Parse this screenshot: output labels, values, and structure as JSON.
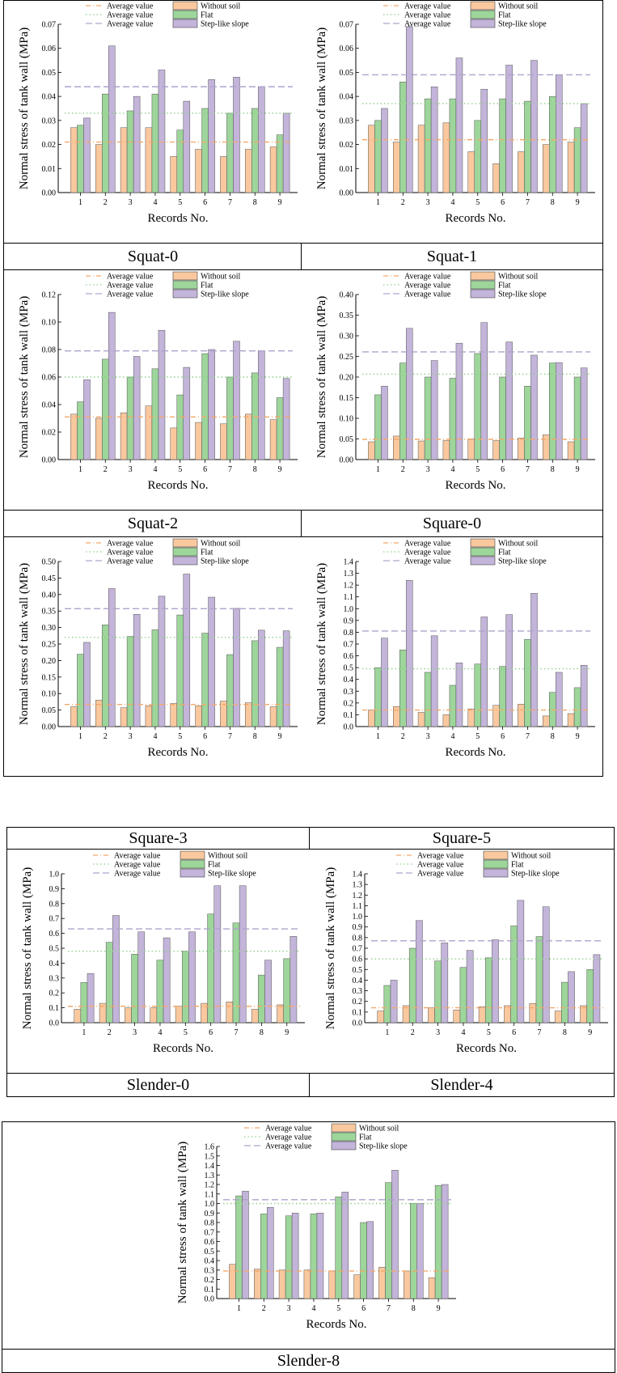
{
  "legend": {
    "average_label": "Average value",
    "without_soil": "Without soil",
    "flat": "Flat",
    "step": "Step-like slope"
  },
  "colors": {
    "without_soil": "#F9C89E",
    "flat": "#9DD59A",
    "step": "#C3B4DA",
    "avg_without": "#F4A86A",
    "avg_flat": "#8ED08A",
    "avg_step": "#AFA3CC"
  },
  "captions": [
    "Squat-0",
    "Squat-1",
    "Squat-2",
    "Square-0",
    "Square-3",
    "Square-5",
    "Slender-0",
    "Slender-4",
    "Slender-8"
  ],
  "chart_data": [
    {
      "type": "bar",
      "name": "Squat-0",
      "xlabel": "Records No.",
      "ylabel": "Normal stress of tank wall (MPa)",
      "categories": [
        "1",
        "2",
        "3",
        "4",
        "5",
        "6",
        "7",
        "8",
        "9"
      ],
      "ylim": [
        0,
        0.07
      ],
      "yticks": [
        "0.00",
        "0.01",
        "0.02",
        "0.03",
        "0.04",
        "0.05",
        "0.06",
        "0.07"
      ],
      "series": [
        {
          "name": "Without soil",
          "values": [
            0.027,
            0.02,
            0.027,
            0.027,
            0.015,
            0.018,
            0.015,
            0.018,
            0.019
          ]
        },
        {
          "name": "Flat",
          "values": [
            0.028,
            0.041,
            0.034,
            0.041,
            0.026,
            0.035,
            0.033,
            0.035,
            0.024
          ]
        },
        {
          "name": "Step-like slope",
          "values": [
            0.031,
            0.061,
            0.04,
            0.051,
            0.038,
            0.047,
            0.048,
            0.044,
            0.033
          ]
        }
      ],
      "averages": [
        0.021,
        0.033,
        0.044
      ]
    },
    {
      "type": "bar",
      "name": "Squat-1",
      "xlabel": "Records No.",
      "ylabel": "Normal stress of tank wall (MPa)",
      "categories": [
        "1",
        "2",
        "3",
        "4",
        "5",
        "6",
        "7",
        "8",
        "9"
      ],
      "ylim": [
        0,
        0.07
      ],
      "yticks": [
        "0.00",
        "0.01",
        "0.02",
        "0.03",
        "0.04",
        "0.05",
        "0.06",
        "0.07"
      ],
      "series": [
        {
          "name": "Without soil",
          "values": [
            0.028,
            0.021,
            0.028,
            0.029,
            0.017,
            0.012,
            0.017,
            0.02,
            0.021
          ]
        },
        {
          "name": "Flat",
          "values": [
            0.03,
            0.046,
            0.039,
            0.039,
            0.03,
            0.039,
            0.038,
            0.04,
            0.027
          ]
        },
        {
          "name": "Step-like slope",
          "values": [
            0.035,
            0.069,
            0.044,
            0.056,
            0.043,
            0.053,
            0.055,
            0.049,
            0.037
          ]
        }
      ],
      "averages": [
        0.022,
        0.037,
        0.049
      ]
    },
    {
      "type": "bar",
      "name": "Squat-2",
      "xlabel": "Records No.",
      "ylabel": "Normal stress of tank wall (MPa)",
      "categories": [
        "1",
        "2",
        "3",
        "4",
        "5",
        "6",
        "7",
        "8",
        "9"
      ],
      "ylim": [
        0,
        0.12
      ],
      "yticks": [
        "0.00",
        "0.02",
        "0.04",
        "0.06",
        "0.08",
        "0.10",
        "0.12"
      ],
      "series": [
        {
          "name": "Without soil",
          "values": [
            0.033,
            0.03,
            0.034,
            0.039,
            0.023,
            0.027,
            0.026,
            0.033,
            0.029
          ]
        },
        {
          "name": "Flat",
          "values": [
            0.042,
            0.073,
            0.06,
            0.066,
            0.047,
            0.077,
            0.06,
            0.063,
            0.045
          ]
        },
        {
          "name": "Step-like slope",
          "values": [
            0.058,
            0.107,
            0.075,
            0.094,
            0.067,
            0.08,
            0.086,
            0.079,
            0.059
          ]
        }
      ],
      "averages": [
        0.031,
        0.06,
        0.079
      ]
    },
    {
      "type": "bar",
      "name": "Square-0",
      "xlabel": "Records No.",
      "ylabel": "Normal stress of tank wall (MPa)",
      "categories": [
        "1",
        "2",
        "3",
        "4",
        "5",
        "6",
        "7",
        "8",
        "9"
      ],
      "ylim": [
        0,
        0.4
      ],
      "yticks": [
        "0.00",
        "0.05",
        "0.10",
        "0.15",
        "0.20",
        "0.25",
        "0.30",
        "0.35",
        "0.40"
      ],
      "series": [
        {
          "name": "Without soil",
          "values": [
            0.043,
            0.057,
            0.045,
            0.046,
            0.05,
            0.046,
            0.052,
            0.06,
            0.043
          ]
        },
        {
          "name": "Flat",
          "values": [
            0.157,
            0.234,
            0.2,
            0.197,
            0.257,
            0.2,
            0.178,
            0.234,
            0.2
          ]
        },
        {
          "name": "Step-like slope",
          "values": [
            0.178,
            0.318,
            0.24,
            0.282,
            0.332,
            0.285,
            0.253,
            0.235,
            0.222
          ]
        }
      ],
      "averages": [
        0.049,
        0.207,
        0.261
      ]
    },
    {
      "type": "bar",
      "name": "Square-3",
      "xlabel": "Records No.",
      "ylabel": "Normal stress of tank wall (MPa)",
      "categories": [
        "1",
        "2",
        "3",
        "4",
        "5",
        "6",
        "7",
        "8",
        "9"
      ],
      "ylim": [
        0,
        0.5
      ],
      "yticks": [
        "0.00",
        "0.05",
        "0.10",
        "0.15",
        "0.20",
        "0.25",
        "0.30",
        "0.35",
        "0.40",
        "0.45",
        "0.50"
      ],
      "series": [
        {
          "name": "Without soil",
          "values": [
            0.06,
            0.08,
            0.057,
            0.063,
            0.07,
            0.063,
            0.077,
            0.072,
            0.06
          ]
        },
        {
          "name": "Flat",
          "values": [
            0.219,
            0.308,
            0.273,
            0.293,
            0.338,
            0.283,
            0.218,
            0.26,
            0.24
          ]
        },
        {
          "name": "Step-like slope",
          "values": [
            0.255,
            0.418,
            0.34,
            0.395,
            0.462,
            0.392,
            0.358,
            0.292,
            0.29
          ]
        }
      ],
      "averages": [
        0.067,
        0.27,
        0.357
      ]
    },
    {
      "type": "bar",
      "name": "Square-5",
      "xlabel": "Records No.",
      "ylabel": "Normal stress of tank wall (MPa)",
      "categories": [
        "1",
        "2",
        "3",
        "4",
        "5",
        "6",
        "7",
        "8",
        "9"
      ],
      "ylim": [
        0,
        1.4
      ],
      "yticks": [
        "0.0",
        "0.1",
        "0.2",
        "0.3",
        "0.4",
        "0.5",
        "0.6",
        "0.7",
        "0.8",
        "0.9",
        "1.0",
        "1.1",
        "1.2",
        "1.3",
        "1.4"
      ],
      "series": [
        {
          "name": "Without soil",
          "values": [
            0.14,
            0.17,
            0.12,
            0.1,
            0.15,
            0.18,
            0.19,
            0.09,
            0.11
          ]
        },
        {
          "name": "Flat",
          "values": [
            0.5,
            0.65,
            0.46,
            0.35,
            0.53,
            0.51,
            0.74,
            0.29,
            0.33
          ]
        },
        {
          "name": "Step-like slope",
          "values": [
            0.75,
            1.24,
            0.77,
            0.54,
            0.93,
            0.95,
            1.13,
            0.46,
            0.52
          ]
        }
      ],
      "averages": [
        0.14,
        0.49,
        0.81
      ]
    },
    {
      "type": "bar",
      "name": "Slender-0",
      "xlabel": "Records No.",
      "ylabel": "Normal stress of tank wall (MPa)",
      "categories": [
        "1",
        "2",
        "3",
        "4",
        "5",
        "6",
        "7",
        "8",
        "9"
      ],
      "ylim": [
        0,
        1.0
      ],
      "yticks": [
        "0.0",
        "0.1",
        "0.2",
        "0.3",
        "0.4",
        "0.5",
        "0.6",
        "0.7",
        "0.8",
        "0.9",
        "1.0"
      ],
      "series": [
        {
          "name": "Without soil",
          "values": [
            0.09,
            0.13,
            0.1,
            0.1,
            0.11,
            0.13,
            0.14,
            0.09,
            0.12
          ]
        },
        {
          "name": "Flat",
          "values": [
            0.27,
            0.54,
            0.46,
            0.42,
            0.48,
            0.73,
            0.67,
            0.32,
            0.43
          ]
        },
        {
          "name": "Step-like slope",
          "values": [
            0.33,
            0.72,
            0.61,
            0.57,
            0.61,
            0.92,
            0.92,
            0.42,
            0.58
          ]
        }
      ],
      "averages": [
        0.11,
        0.48,
        0.63
      ]
    },
    {
      "type": "bar",
      "name": "Slender-4",
      "xlabel": "Records No.",
      "ylabel": "Normal stress of tank wall (MPa)",
      "categories": [
        "1",
        "2",
        "3",
        "4",
        "5",
        "6",
        "7",
        "8",
        "9"
      ],
      "ylim": [
        0,
        1.4
      ],
      "yticks": [
        "0.0",
        "0.1",
        "0.2",
        "0.3",
        "0.4",
        "0.5",
        "0.6",
        "0.7",
        "0.8",
        "0.9",
        "1.0",
        "1.1",
        "1.2",
        "1.3",
        "1.4"
      ],
      "series": [
        {
          "name": "Without soil",
          "values": [
            0.11,
            0.16,
            0.14,
            0.12,
            0.15,
            0.16,
            0.18,
            0.11,
            0.16
          ]
        },
        {
          "name": "Flat",
          "values": [
            0.35,
            0.7,
            0.58,
            0.52,
            0.61,
            0.91,
            0.81,
            0.38,
            0.5
          ]
        },
        {
          "name": "Step-like slope",
          "values": [
            0.4,
            0.96,
            0.75,
            0.68,
            0.78,
            1.15,
            1.09,
            0.48,
            0.64
          ]
        }
      ],
      "averages": [
        0.14,
        0.6,
        0.77
      ]
    },
    {
      "type": "bar",
      "name": "Slender-8",
      "xlabel": "Records No.",
      "ylabel": "Normal stress of tank wall (MPa)",
      "categories": [
        "1",
        "2",
        "3",
        "4",
        "5",
        "6",
        "7",
        "8",
        "9"
      ],
      "ylim": [
        0,
        1.6
      ],
      "yticks": [
        "0.0",
        "0.1",
        "0.2",
        "0.3",
        "0.4",
        "0.5",
        "0.6",
        "0.7",
        "0.8",
        "0.9",
        "1.0",
        "1.1",
        "1.2",
        "1.3",
        "1.4",
        "1.5",
        "1.6"
      ],
      "series": [
        {
          "name": "Without soil",
          "values": [
            0.36,
            0.31,
            0.3,
            0.3,
            0.29,
            0.25,
            0.33,
            0.29,
            0.22
          ]
        },
        {
          "name": "Flat",
          "values": [
            1.08,
            0.89,
            0.87,
            0.89,
            1.07,
            0.8,
            1.22,
            1.0,
            1.19
          ]
        },
        {
          "name": "Step-like slope",
          "values": [
            1.13,
            0.96,
            0.9,
            0.9,
            1.12,
            0.81,
            1.35,
            1.0,
            1.2
          ]
        }
      ],
      "averages": [
        0.29,
        1.0,
        1.04
      ]
    }
  ]
}
